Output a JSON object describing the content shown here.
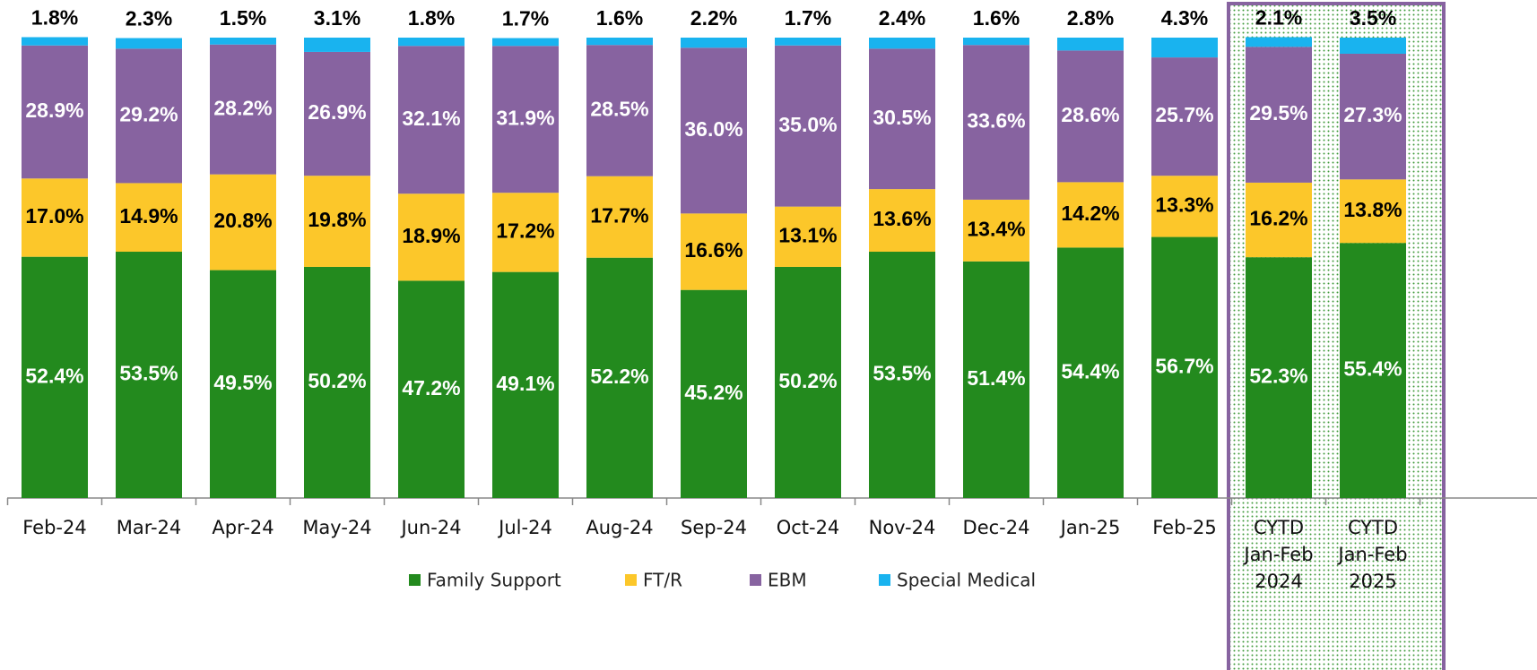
{
  "chart_data": {
    "type": "bar",
    "stacked": true,
    "categories": [
      "Feb-24",
      "Mar-24",
      "Apr-24",
      "May-24",
      "Jun-24",
      "Jul-24",
      "Aug-24",
      "Sep-24",
      "Oct-24",
      "Nov-24",
      "Dec-24",
      "Jan-25",
      "Feb-25",
      "CYTD Jan-Feb 2024",
      "CYTD Jan-Feb 2025"
    ],
    "ylim": [
      0,
      100
    ],
    "series": [
      {
        "name": "Family Support",
        "color": "#238a1e",
        "values": [
          52.4,
          53.5,
          49.5,
          50.2,
          47.2,
          49.1,
          52.2,
          45.2,
          50.2,
          53.5,
          51.4,
          54.4,
          56.7,
          52.3,
          55.4
        ],
        "value_labels": [
          "52.4%",
          "53.5%",
          "49.5%",
          "50.2%",
          "47.2%",
          "49.1%",
          "52.2%",
          "45.2%",
          "50.2%",
          "53.5%",
          "51.4%",
          "54.4%",
          "56.7%",
          "52.3%",
          "55.4%"
        ]
      },
      {
        "name": "FT/R",
        "color": "#fcc72a",
        "values": [
          17.0,
          14.9,
          20.8,
          19.8,
          18.9,
          17.2,
          17.7,
          16.6,
          13.1,
          13.6,
          13.4,
          14.2,
          13.3,
          16.2,
          13.8
        ],
        "value_labels": [
          "17.0%",
          "14.9%",
          "20.8%",
          "19.8%",
          "18.9%",
          "17.2%",
          "17.7%",
          "16.6%",
          "13.1%",
          "13.6%",
          "13.4%",
          "14.2%",
          "13.3%",
          "16.2%",
          "13.8%"
        ]
      },
      {
        "name": "EBM",
        "color": "#8763a0",
        "values": [
          28.9,
          29.2,
          28.2,
          26.9,
          32.1,
          31.9,
          28.5,
          36.0,
          35.0,
          30.5,
          33.6,
          28.6,
          25.7,
          29.5,
          27.3
        ],
        "value_labels": [
          "28.9%",
          "29.2%",
          "28.2%",
          "26.9%",
          "32.1%",
          "31.9%",
          "28.5%",
          "36.0%",
          "35.0%",
          "30.5%",
          "33.6%",
          "28.6%",
          "25.7%",
          "29.5%",
          "27.3%"
        ]
      },
      {
        "name": "Special Medical",
        "color": "#19b3ef",
        "values": [
          1.8,
          2.3,
          1.5,
          3.1,
          1.8,
          1.7,
          1.6,
          2.2,
          1.7,
          2.4,
          1.6,
          2.8,
          4.3,
          2.1,
          3.5
        ],
        "value_labels": [
          "1.8%",
          "2.3%",
          "1.5%",
          "3.1%",
          "1.8%",
          "1.7%",
          "1.6%",
          "2.2%",
          "1.7%",
          "2.4%",
          "1.6%",
          "2.8%",
          "4.3%",
          "2.1%",
          "3.5%"
        ]
      }
    ]
  }
}
